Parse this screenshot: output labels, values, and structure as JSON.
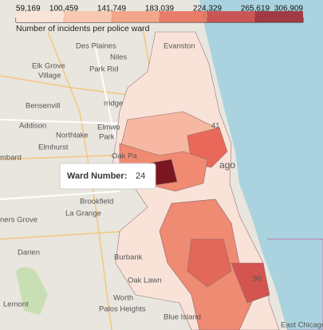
{
  "legend": {
    "title": "Number of incidents per police ward",
    "ticks": [
      {
        "value": 59169,
        "label": "59,169"
      },
      {
        "value": 100459,
        "label": "100,459"
      },
      {
        "value": 141749,
        "label": "141,749"
      },
      {
        "value": 183039,
        "label": "183,039"
      },
      {
        "value": 224329,
        "label": "224,329"
      },
      {
        "value": 265619,
        "label": "265,619"
      },
      {
        "value": 306909,
        "label": "306,909"
      }
    ],
    "colors": [
      "#fde3d6",
      "#fbc2a8",
      "#f59a7c",
      "#ea6a56",
      "#cf3f3f",
      "#a11f2a"
    ]
  },
  "tooltip": {
    "label": "Ward Number:",
    "value": "24"
  },
  "places": [
    "Des Plaines",
    "Niles",
    "Evanston",
    "Elk Grove",
    "Village",
    "Park Rid",
    "Bensenvill",
    "Addison",
    "Northlake",
    "Elmhurst",
    "Elmwo",
    "Park",
    "rridge",
    "Oak Pa",
    "ago",
    "Brookfield",
    "La Grange",
    "Darien",
    "Burbank",
    "Oak Lawn",
    "Worth",
    "Palos Heights",
    "Blue Island",
    "Lemont",
    "mbard",
    "ners Grove",
    "41",
    "90",
    "East Chicago"
  ]
}
